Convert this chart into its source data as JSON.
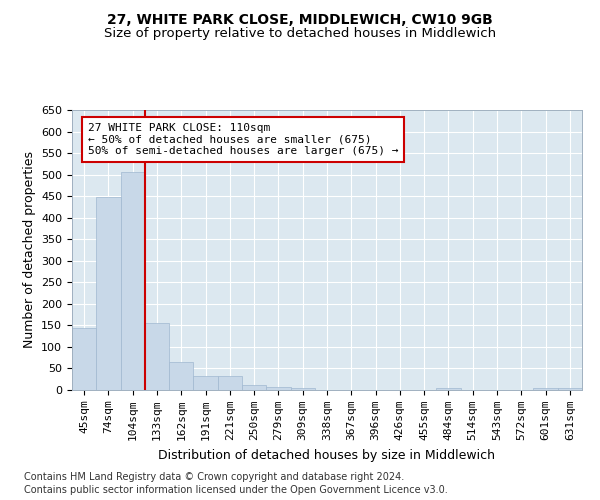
{
  "title": "27, WHITE PARK CLOSE, MIDDLEWICH, CW10 9GB",
  "subtitle": "Size of property relative to detached houses in Middlewich",
  "xlabel": "Distribution of detached houses by size in Middlewich",
  "ylabel": "Number of detached properties",
  "footer_line1": "Contains HM Land Registry data © Crown copyright and database right 2024.",
  "footer_line2": "Contains public sector information licensed under the Open Government Licence v3.0.",
  "bin_labels": [
    "45sqm",
    "74sqm",
    "104sqm",
    "133sqm",
    "162sqm",
    "191sqm",
    "221sqm",
    "250sqm",
    "279sqm",
    "309sqm",
    "338sqm",
    "367sqm",
    "396sqm",
    "426sqm",
    "455sqm",
    "484sqm",
    "514sqm",
    "543sqm",
    "572sqm",
    "601sqm",
    "631sqm"
  ],
  "bar_values": [
    145,
    448,
    505,
    155,
    65,
    32,
    32,
    12,
    8,
    5,
    0,
    0,
    0,
    0,
    0,
    5,
    0,
    0,
    0,
    5,
    5
  ],
  "bar_color": "#c8d8e8",
  "bar_edgecolor": "#a0b8d0",
  "red_line_bin_idx": 2,
  "red_line_color": "#cc0000",
  "annotation_text": "27 WHITE PARK CLOSE: 110sqm\n← 50% of detached houses are smaller (675)\n50% of semi-detached houses are larger (675) →",
  "annotation_box_color": "white",
  "annotation_box_edgecolor": "#cc0000",
  "ylim": [
    0,
    650
  ],
  "yticks": [
    0,
    50,
    100,
    150,
    200,
    250,
    300,
    350,
    400,
    450,
    500,
    550,
    600,
    650
  ],
  "plot_background_color": "#dce8f0",
  "title_fontsize": 10,
  "subtitle_fontsize": 9.5,
  "axis_label_fontsize": 9,
  "tick_fontsize": 8,
  "annotation_fontsize": 8,
  "footer_fontsize": 7
}
